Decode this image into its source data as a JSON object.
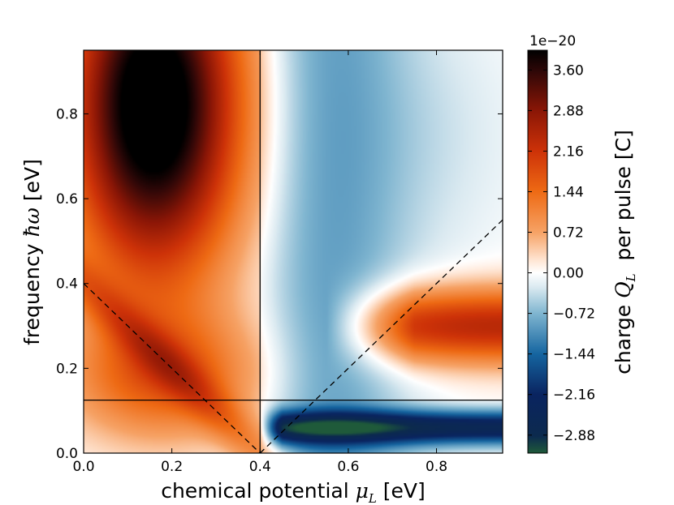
{
  "chart_data": {
    "type": "heatmap",
    "xlabel": "chemical potential μ_L [eV]",
    "xlabel_parts": {
      "prefix": "chemical potential ",
      "symbol": "μ",
      "subscript": "L",
      "unit": " [eV]"
    },
    "ylabel": "frequency ħω [eV]",
    "ylabel_parts": {
      "prefix": "frequency ",
      "symbol": "ħω",
      "unit": " [eV]"
    },
    "xlim": [
      0.0,
      0.95
    ],
    "ylim": [
      0.0,
      0.95
    ],
    "xticks": [
      0.0,
      0.2,
      0.4,
      0.6,
      0.8
    ],
    "xtick_labels": [
      "0.0",
      "0.2",
      "0.4",
      "0.6",
      "0.8"
    ],
    "yticks": [
      0.0,
      0.2,
      0.4,
      0.6,
      0.8
    ],
    "ytick_labels": [
      "0.0",
      "0.2",
      "0.4",
      "0.6",
      "0.8"
    ],
    "colorbar": {
      "label": "charge Q_L  per pulse [C]",
      "label_parts": {
        "prefix": "charge ",
        "symbol": "Q",
        "subscript": "L",
        "suffix": "  per pulse [C]"
      },
      "offset_label": "1e−20",
      "range": [
        -3.2,
        3.95
      ],
      "ticks": [
        3.6,
        2.88,
        2.16,
        1.44,
        0.72,
        0.0,
        -0.72,
        -1.44,
        -2.16,
        -2.88
      ],
      "tick_labels": [
        "3.60",
        "2.88",
        "2.16",
        "1.44",
        "0.72",
        "0.00",
        "−0.72",
        "−1.44",
        "−2.16",
        "−2.88"
      ],
      "colormap": [
        {
          "v": -3.2,
          "color": "#1f5a3a"
        },
        {
          "v": -2.9,
          "color": "#0c2a4e"
        },
        {
          "v": -2.16,
          "color": "#0a2460"
        },
        {
          "v": -1.44,
          "color": "#1565a0"
        },
        {
          "v": -0.72,
          "color": "#7fb5d0"
        },
        {
          "v": -0.25,
          "color": "#dbeaf1"
        },
        {
          "v": 0.0,
          "color": "#ffffff"
        },
        {
          "v": 0.2,
          "color": "#ffe8d8"
        },
        {
          "v": 0.72,
          "color": "#f6a265"
        },
        {
          "v": 1.44,
          "color": "#ee6a14"
        },
        {
          "v": 2.16,
          "color": "#cd3208"
        },
        {
          "v": 2.88,
          "color": "#8a1606"
        },
        {
          "v": 3.6,
          "color": "#2c0707"
        },
        {
          "v": 3.95,
          "color": "#000000"
        }
      ]
    },
    "reference_lines": [
      {
        "style": "solid",
        "type": "vertical",
        "x": 0.4
      },
      {
        "style": "solid",
        "type": "horizontal",
        "y": 0.125
      },
      {
        "style": "dashed",
        "points": [
          [
            0.0,
            0.4
          ],
          [
            0.4,
            0.0
          ]
        ]
      },
      {
        "style": "dashed",
        "points": [
          [
            0.4,
            0.0
          ],
          [
            0.95,
            0.55
          ]
        ]
      }
    ]
  }
}
